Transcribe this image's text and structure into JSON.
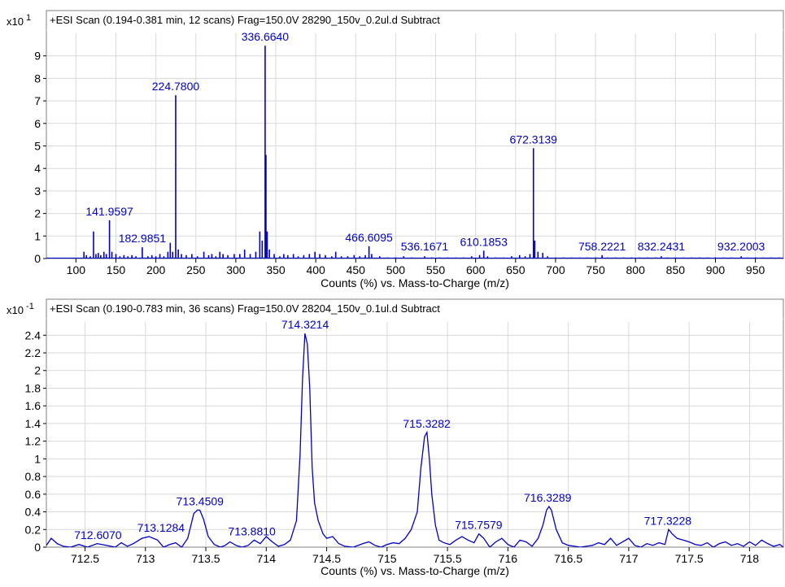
{
  "chart_data": [
    {
      "type": "line",
      "multiplier_label": "x10",
      "multiplier_exp": "1",
      "title": "+ESI Scan (0.194-0.381 min, 12 scans) Frag=150.0V 28290_150v_0.2ul.d  Subtract",
      "xlabel": "Counts (%) vs. Mass-to-Charge (m/z)",
      "xlim": [
        63,
        985
      ],
      "ylim": [
        0,
        10.0
      ],
      "x_ticks": [
        100,
        150,
        200,
        250,
        300,
        350,
        400,
        450,
        500,
        550,
        600,
        650,
        700,
        750,
        800,
        850,
        900,
        950
      ],
      "y_ticks": [
        0,
        1,
        2,
        3,
        4,
        5,
        6,
        7,
        8,
        9
      ],
      "grid": true,
      "color": "#0000c8",
      "label_color": "#0000c8",
      "series": [
        {
          "x": [
            110,
            113,
            118,
            122,
            125,
            128,
            131,
            135,
            138,
            141.96,
            145,
            150,
            155,
            160,
            165,
            170,
            175,
            182.99,
            190,
            195,
            200,
            205,
            210,
            215,
            218,
            221,
            224.78,
            228,
            232,
            238,
            245,
            252,
            260,
            266,
            270,
            275,
            280,
            284,
            290,
            298,
            305,
            311,
            318,
            325,
            330,
            333,
            336.66,
            337.7,
            339.2,
            342,
            348,
            355,
            360,
            365,
            372,
            378,
            385,
            392,
            399,
            405,
            412,
            420,
            425,
            432,
            440,
            448,
            455,
            462,
            466.61,
            470,
            480,
            490,
            500,
            510,
            520,
            536.17,
            545,
            555,
            565,
            575,
            585,
            595,
            605,
            610.19,
            615,
            625,
            635,
            645,
            655,
            662,
            668,
            672.31,
            674,
            678,
            684,
            690,
            700,
            710,
            720,
            730,
            740,
            750,
            758.22,
            765,
            775,
            785,
            795,
            805,
            815,
            825,
            832.24,
            840,
            850,
            860,
            870,
            880,
            890,
            900,
            910,
            920,
            932.2,
            940,
            950,
            960,
            970,
            980
          ],
          "y": [
            0.3,
            0.15,
            0.1,
            1.2,
            0.2,
            0.25,
            0.15,
            0.3,
            0.2,
            1.7,
            0.3,
            0.2,
            0.1,
            0.15,
            0.1,
            0.15,
            0.1,
            0.5,
            0.1,
            0.15,
            0.1,
            0.2,
            0.1,
            0.3,
            0.7,
            0.3,
            7.25,
            0.4,
            0.2,
            0.15,
            0.2,
            0.1,
            0.3,
            0.15,
            0.2,
            0.1,
            0.3,
            0.2,
            0.15,
            0.2,
            0.2,
            0.4,
            0.2,
            0.3,
            1.2,
            0.8,
            9.45,
            4.6,
            1.2,
            0.4,
            0.2,
            0.1,
            0.2,
            0.15,
            0.2,
            0.1,
            0.15,
            0.2,
            0.3,
            0.2,
            0.15,
            0.1,
            0.3,
            0.1,
            0.1,
            0.15,
            0.1,
            0.15,
            0.55,
            0.2,
            0.1,
            0.05,
            0.05,
            0.1,
            0.05,
            0.1,
            0.05,
            0.05,
            0.05,
            0.05,
            0.05,
            0.1,
            0.15,
            0.35,
            0.1,
            0.05,
            0.05,
            0.1,
            0.15,
            0.1,
            0.2,
            4.9,
            0.8,
            0.3,
            0.25,
            0.1,
            0.05,
            0.05,
            0.05,
            0.05,
            0.05,
            0.05,
            0.15,
            0.05,
            0.05,
            0.05,
            0.05,
            0.05,
            0.05,
            0.05,
            0.1,
            0.05,
            0.05,
            0.05,
            0.05,
            0.05,
            0.05,
            0.05,
            0.05,
            0.05,
            0.1,
            0.05,
            0.05,
            0.05,
            0.05,
            0.05
          ]
        }
      ],
      "annotations": [
        {
          "label": "336.6640",
          "x": 336.664,
          "y": 9.45
        },
        {
          "label": "224.7800",
          "x": 224.78,
          "y": 7.25
        },
        {
          "label": "672.3139",
          "x": 672.3139,
          "y": 4.9
        },
        {
          "label": "141.9597",
          "x": 141.9597,
          "y": 1.7
        },
        {
          "label": "182.9851",
          "x": 182.9851,
          "y": 0.5
        },
        {
          "label": "466.6095",
          "x": 466.6095,
          "y": 0.55
        },
        {
          "label": "536.1671",
          "x": 536.1671,
          "y": 0.1
        },
        {
          "label": "610.1853",
          "x": 610.1853,
          "y": 0.35
        },
        {
          "label": "758.2221",
          "x": 758.2221,
          "y": 0.15
        },
        {
          "label": "832.2431",
          "x": 832.2431,
          "y": 0.1
        },
        {
          "label": "932.2003",
          "x": 932.2003,
          "y": 0.1
        }
      ]
    },
    {
      "type": "line",
      "multiplier_label": "x10",
      "multiplier_exp": "-1",
      "title": "+ESI Scan (0.190-0.783 min, 36 scans) Frag=150.0V 28204_150v_0.1ul.d  Subtract",
      "xlabel": "Counts (%) vs. Mass-to-Charge (m/z)",
      "xlim": [
        712.18,
        718.28
      ],
      "ylim": [
        0,
        2.55
      ],
      "x_ticks": [
        712.5,
        713,
        713.5,
        714,
        714.5,
        715,
        715.5,
        716,
        716.5,
        717,
        717.5,
        718
      ],
      "y_ticks": [
        0,
        0.2,
        0.4,
        0.6,
        0.8,
        1,
        1.2,
        1.4,
        1.6,
        1.8,
        2,
        2.2,
        2.4
      ],
      "grid": true,
      "color": "#0000c8",
      "label_color": "#0000c8",
      "series": [
        {
          "x": [
            712.18,
            712.22,
            712.27,
            712.32,
            712.38,
            712.45,
            712.52,
            712.6,
            712.68,
            712.75,
            712.8,
            712.85,
            712.9,
            712.97,
            713.03,
            713.1,
            713.15,
            713.2,
            713.25,
            713.3,
            713.35,
            713.4,
            713.43,
            713.45,
            713.48,
            713.52,
            713.57,
            713.62,
            713.66,
            713.7,
            713.75,
            713.8,
            713.85,
            713.9,
            713.95,
            714.0,
            714.05,
            714.1,
            714.15,
            714.2,
            714.25,
            714.28,
            714.3,
            714.32,
            714.34,
            714.36,
            714.38,
            714.4,
            714.43,
            714.47,
            714.5,
            714.55,
            714.6,
            714.65,
            714.72,
            714.8,
            714.85,
            714.9,
            714.95,
            715.0,
            715.05,
            715.1,
            715.15,
            715.2,
            715.25,
            715.28,
            715.31,
            715.33,
            715.35,
            715.37,
            715.4,
            715.43,
            715.47,
            715.52,
            715.57,
            715.62,
            715.67,
            715.72,
            715.76,
            715.8,
            715.85,
            715.9,
            715.95,
            716.0,
            716.05,
            716.1,
            716.15,
            716.2,
            716.25,
            716.29,
            716.32,
            716.34,
            716.36,
            716.4,
            716.45,
            716.5,
            716.55,
            716.6,
            716.65,
            716.7,
            716.75,
            716.8,
            716.85,
            716.9,
            716.95,
            717.0,
            717.05,
            717.1,
            717.15,
            717.2,
            717.25,
            717.3,
            717.33,
            717.36,
            717.4,
            717.45,
            717.5,
            717.55,
            717.6,
            717.65,
            717.7,
            717.75,
            717.8,
            717.85,
            717.9,
            717.95,
            718.0,
            718.05,
            718.1,
            718.15,
            718.2,
            718.25,
            718.28
          ],
          "y": [
            0.02,
            0.1,
            0.04,
            0.01,
            0.0,
            0.03,
            0.0,
            0.04,
            0.02,
            0.0,
            0.05,
            0.01,
            0.04,
            0.1,
            0.12,
            0.08,
            0.0,
            0.03,
            0.05,
            0.0,
            0.1,
            0.38,
            0.42,
            0.42,
            0.32,
            0.12,
            0.03,
            0.0,
            0.02,
            0.06,
            0.02,
            0.0,
            0.02,
            0.08,
            0.04,
            0.12,
            0.06,
            0.01,
            0.03,
            0.08,
            0.3,
            1.05,
            1.9,
            2.42,
            2.3,
            1.8,
            0.9,
            0.5,
            0.3,
            0.15,
            0.1,
            0.12,
            0.04,
            0.01,
            0.0,
            0.04,
            0.06,
            0.02,
            0.0,
            0.03,
            0.05,
            0.04,
            0.1,
            0.2,
            0.4,
            0.9,
            1.25,
            1.3,
            1.0,
            0.6,
            0.25,
            0.08,
            0.05,
            0.03,
            0.08,
            0.12,
            0.08,
            0.05,
            0.15,
            0.1,
            0.0,
            0.06,
            0.1,
            0.03,
            0.0,
            0.08,
            0.06,
            0.01,
            0.1,
            0.25,
            0.42,
            0.46,
            0.42,
            0.2,
            0.05,
            0.02,
            0.01,
            0.0,
            0.01,
            0.02,
            0.05,
            0.03,
            0.1,
            0.02,
            0.06,
            0.1,
            0.02,
            0.0,
            0.04,
            0.02,
            0.05,
            0.03,
            0.2,
            0.15,
            0.1,
            0.08,
            0.06,
            0.03,
            0.02,
            0.05,
            0.0,
            0.04,
            0.06,
            0.02,
            0.04,
            0.01,
            0.06,
            0.02,
            0.08,
            0.04,
            0.01,
            0.03,
            0.0
          ]
        }
      ],
      "annotations": [
        {
          "label": "714.3214",
          "x": 714.3214,
          "y": 2.42
        },
        {
          "label": "715.3282",
          "x": 715.3282,
          "y": 1.3
        },
        {
          "label": "716.3289",
          "x": 716.3289,
          "y": 0.46
        },
        {
          "label": "713.4509",
          "x": 713.4509,
          "y": 0.42
        },
        {
          "label": "713.1284",
          "x": 713.1284,
          "y": 0.12
        },
        {
          "label": "712.6070",
          "x": 712.607,
          "y": 0.0
        },
        {
          "label": "713.8810",
          "x": 713.881,
          "y": 0.08
        },
        {
          "label": "715.7579",
          "x": 715.7579,
          "y": 0.15
        },
        {
          "label": "717.3228",
          "x": 717.3228,
          "y": 0.2
        }
      ]
    }
  ]
}
